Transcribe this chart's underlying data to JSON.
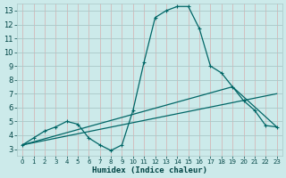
{
  "xlabel": "Humidex (Indice chaleur)",
  "bg_color": "#cceaea",
  "grid_color_h": "#aac8c8",
  "grid_color_v": "#d4b8b8",
  "line_color": "#006666",
  "xlim": [
    -0.5,
    23.5
  ],
  "ylim": [
    2.5,
    13.5
  ],
  "yticks": [
    3,
    4,
    5,
    6,
    7,
    8,
    9,
    10,
    11,
    12,
    13
  ],
  "xtick_labels": [
    "0",
    "1",
    "2",
    "3",
    "4",
    "5",
    "6",
    "7",
    "8",
    "9",
    "10",
    "11",
    "12",
    "13",
    "14",
    "15",
    "16",
    "17",
    "18",
    "19",
    "20",
    "21",
    "22",
    "23"
  ],
  "main_x": [
    0,
    1,
    2,
    3,
    4,
    5,
    6,
    7,
    8,
    9,
    10,
    11,
    12,
    13,
    14,
    15,
    16,
    17,
    18,
    19,
    20,
    21,
    22,
    23
  ],
  "main_y": [
    3.3,
    3.8,
    4.3,
    4.6,
    5.0,
    4.8,
    3.8,
    3.3,
    2.9,
    3.3,
    5.8,
    9.3,
    12.5,
    13.0,
    13.3,
    13.3,
    11.7,
    9.0,
    8.5,
    7.5,
    6.5,
    5.8,
    4.7,
    4.6
  ],
  "line2_x": [
    0,
    19,
    23
  ],
  "line2_y": [
    3.3,
    7.5,
    4.6
  ],
  "line3_x": [
    0,
    23
  ],
  "line3_y": [
    3.3,
    7.0
  ]
}
